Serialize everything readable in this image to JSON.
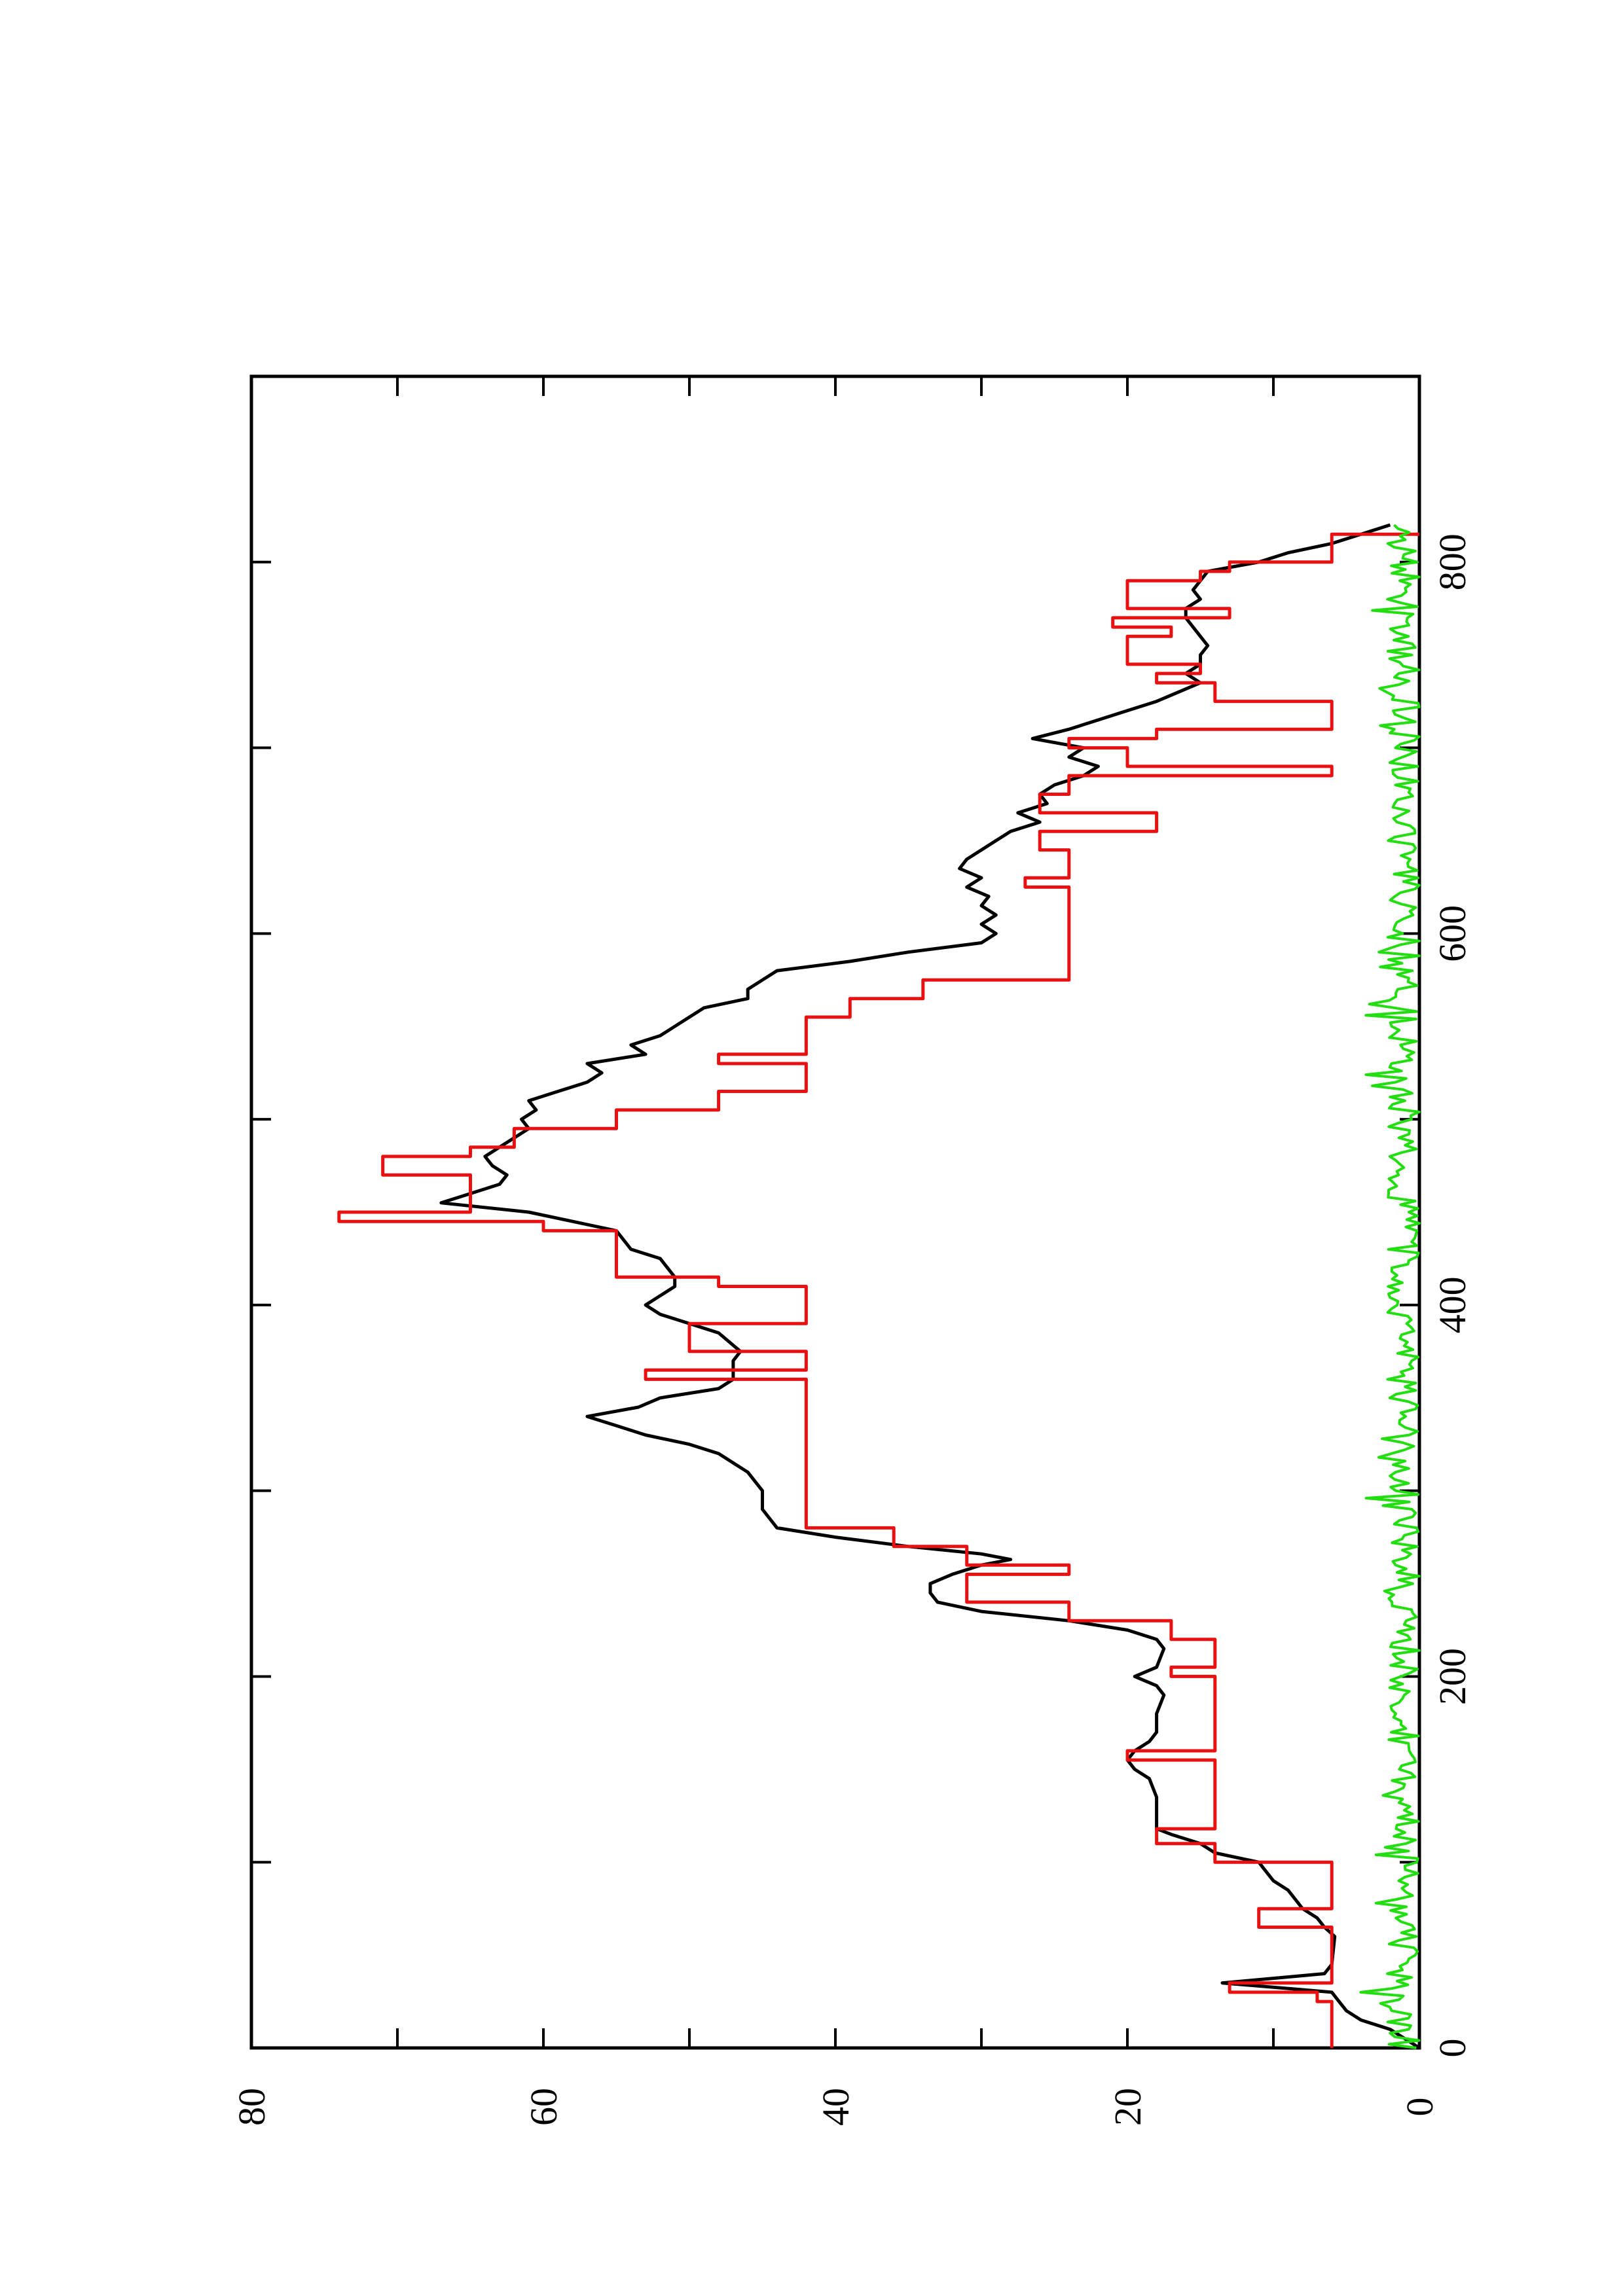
{
  "chart_data": {
    "type": "line",
    "orientation": "rotated-90-ccw",
    "title": "",
    "xlabel": "",
    "ylabel": "",
    "xlim": [
      0,
      900
    ],
    "ylim": [
      0,
      80
    ],
    "x_ticks": [
      0,
      200,
      400,
      600,
      800
    ],
    "y_ticks": [
      0,
      20,
      40,
      60,
      80
    ],
    "x_tick_labels": [
      "0",
      "200",
      "400",
      "600",
      "800"
    ],
    "y_tick_labels": [
      "0",
      "20",
      "40",
      "60",
      "80"
    ],
    "grid": false,
    "legend": "none",
    "series": [
      {
        "color": "#000000",
        "style": "smooth",
        "points": [
          [
            0,
            0
          ],
          [
            5,
            1
          ],
          [
            10,
            2
          ],
          [
            15,
            4
          ],
          [
            20,
            5
          ],
          [
            25,
            5.5
          ],
          [
            30,
            6
          ],
          [
            35,
            13.5
          ],
          [
            40,
            6.5
          ],
          [
            45,
            6
          ],
          [
            60,
            5.8
          ],
          [
            65,
            6.5
          ],
          [
            70,
            7
          ],
          [
            75,
            8
          ],
          [
            80,
            8.5
          ],
          [
            85,
            9
          ],
          [
            90,
            10
          ],
          [
            95,
            10.5
          ],
          [
            100,
            11
          ],
          [
            105,
            14
          ],
          [
            110,
            15
          ],
          [
            115,
            17
          ],
          [
            118,
            18
          ],
          [
            125,
            18
          ],
          [
            135,
            18
          ],
          [
            145,
            18.5
          ],
          [
            150,
            19.5
          ],
          [
            155,
            20
          ],
          [
            160,
            19.5
          ],
          [
            165,
            18.5
          ],
          [
            170,
            18
          ],
          [
            180,
            18
          ],
          [
            190,
            17.5
          ],
          [
            195,
            18
          ],
          [
            200,
            19.5
          ],
          [
            205,
            18
          ],
          [
            215,
            17.5
          ],
          [
            220,
            18
          ],
          [
            225,
            20
          ],
          [
            230,
            24
          ],
          [
            235,
            30
          ],
          [
            240,
            33
          ],
          [
            245,
            33.5
          ],
          [
            250,
            33.5
          ],
          [
            255,
            32
          ],
          [
            260,
            30
          ],
          [
            263,
            28
          ],
          [
            266,
            30
          ],
          [
            270,
            35
          ],
          [
            275,
            40
          ],
          [
            280,
            44
          ],
          [
            290,
            45
          ],
          [
            300,
            45
          ],
          [
            310,
            46
          ],
          [
            315,
            47
          ],
          [
            320,
            48
          ],
          [
            325,
            50
          ],
          [
            330,
            53
          ],
          [
            335,
            55
          ],
          [
            340,
            57
          ],
          [
            345,
            53.5
          ],
          [
            350,
            52
          ],
          [
            355,
            48
          ],
          [
            360,
            47
          ],
          [
            370,
            47
          ],
          [
            375,
            46.5
          ],
          [
            385,
            48
          ],
          [
            390,
            50
          ],
          [
            395,
            52
          ],
          [
            400,
            53
          ],
          [
            405,
            52
          ],
          [
            410,
            51
          ],
          [
            415,
            51
          ],
          [
            420,
            51.5
          ],
          [
            425,
            52
          ],
          [
            430,
            54
          ],
          [
            440,
            55
          ],
          [
            445,
            58
          ],
          [
            450,
            61
          ],
          [
            455,
            67
          ],
          [
            460,
            65
          ],
          [
            465,
            63
          ],
          [
            470,
            62.5
          ],
          [
            475,
            63.5
          ],
          [
            480,
            64
          ],
          [
            485,
            63
          ],
          [
            490,
            62
          ],
          [
            495,
            61
          ],
          [
            500,
            61.5
          ],
          [
            505,
            60.5
          ],
          [
            510,
            61
          ],
          [
            515,
            59
          ],
          [
            520,
            57
          ],
          [
            525,
            56
          ],
          [
            530,
            57
          ],
          [
            535,
            53
          ],
          [
            540,
            54
          ],
          [
            545,
            52
          ],
          [
            550,
            51
          ],
          [
            555,
            50
          ],
          [
            560,
            49
          ],
          [
            565,
            46
          ],
          [
            570,
            46
          ],
          [
            575,
            45
          ],
          [
            580,
            44
          ],
          [
            585,
            39
          ],
          [
            590,
            35
          ],
          [
            595,
            30
          ],
          [
            600,
            29
          ],
          [
            605,
            30
          ],
          [
            610,
            29
          ],
          [
            615,
            30
          ],
          [
            620,
            29.5
          ],
          [
            625,
            31
          ],
          [
            630,
            30
          ],
          [
            635,
            31.5
          ],
          [
            640,
            31
          ],
          [
            645,
            30
          ],
          [
            650,
            29
          ],
          [
            655,
            28
          ],
          [
            660,
            26
          ],
          [
            665,
            27.5
          ],
          [
            670,
            25.5
          ],
          [
            675,
            26
          ],
          [
            680,
            25
          ],
          [
            685,
            23
          ],
          [
            690,
            22
          ],
          [
            695,
            24
          ],
          [
            700,
            23
          ],
          [
            705,
            26.5
          ],
          [
            710,
            24
          ],
          [
            720,
            20
          ],
          [
            725,
            18
          ],
          [
            735,
            15
          ],
          [
            740,
            16
          ],
          [
            745,
            15
          ],
          [
            750,
            15
          ],
          [
            755,
            14.5
          ],
          [
            760,
            15
          ],
          [
            765,
            15.5
          ],
          [
            770,
            16
          ],
          [
            775,
            16
          ],
          [
            780,
            15
          ],
          [
            785,
            15.5
          ],
          [
            790,
            15
          ],
          [
            795,
            14.5
          ],
          [
            800,
            11
          ],
          [
            805,
            9
          ],
          [
            810,
            6
          ],
          [
            815,
            4
          ],
          [
            820,
            2
          ]
        ]
      },
      {
        "color": "#e81010",
        "style": "step",
        "points": [
          [
            0,
            6
          ],
          [
            25,
            6
          ],
          [
            25,
            7
          ],
          [
            30,
            7
          ],
          [
            30,
            13
          ],
          [
            35,
            13
          ],
          [
            35,
            6
          ],
          [
            65,
            6
          ],
          [
            65,
            11
          ],
          [
            75,
            11
          ],
          [
            75,
            6
          ],
          [
            100,
            6
          ],
          [
            100,
            14
          ],
          [
            110,
            14
          ],
          [
            110,
            18
          ],
          [
            118,
            18
          ],
          [
            118,
            14
          ],
          [
            155,
            14
          ],
          [
            155,
            20
          ],
          [
            160,
            20
          ],
          [
            160,
            14
          ],
          [
            200,
            14
          ],
          [
            200,
            17
          ],
          [
            205,
            17
          ],
          [
            205,
            14
          ],
          [
            220,
            14
          ],
          [
            220,
            17
          ],
          [
            230,
            17
          ],
          [
            230,
            24
          ],
          [
            240,
            24
          ],
          [
            240,
            31
          ],
          [
            255,
            31
          ],
          [
            255,
            24
          ],
          [
            260,
            24
          ],
          [
            260,
            31
          ],
          [
            270,
            31
          ],
          [
            270,
            36
          ],
          [
            280,
            36
          ],
          [
            280,
            42
          ],
          [
            360,
            42
          ],
          [
            360,
            53
          ],
          [
            365,
            53
          ],
          [
            365,
            42
          ],
          [
            375,
            42
          ],
          [
            375,
            50
          ],
          [
            390,
            50
          ],
          [
            390,
            42
          ],
          [
            410,
            42
          ],
          [
            410,
            48
          ],
          [
            415,
            48
          ],
          [
            415,
            55
          ],
          [
            440,
            55
          ],
          [
            440,
            60
          ],
          [
            445,
            60
          ],
          [
            445,
            74
          ],
          [
            450,
            74
          ],
          [
            450,
            65
          ],
          [
            470,
            65
          ],
          [
            470,
            71
          ],
          [
            480,
            71
          ],
          [
            480,
            65
          ],
          [
            485,
            65
          ],
          [
            485,
            62
          ],
          [
            495,
            62
          ],
          [
            495,
            55
          ],
          [
            505,
            55
          ],
          [
            505,
            48
          ],
          [
            515,
            48
          ],
          [
            515,
            42
          ],
          [
            530,
            42
          ],
          [
            530,
            48
          ],
          [
            535,
            48
          ],
          [
            535,
            42
          ],
          [
            555,
            42
          ],
          [
            555,
            39
          ],
          [
            565,
            39
          ],
          [
            565,
            34
          ],
          [
            575,
            34
          ],
          [
            575,
            24
          ],
          [
            625,
            24
          ],
          [
            625,
            27
          ],
          [
            630,
            27
          ],
          [
            630,
            24
          ],
          [
            645,
            24
          ],
          [
            645,
            26
          ],
          [
            655,
            26
          ],
          [
            655,
            18
          ],
          [
            665,
            18
          ],
          [
            665,
            26
          ],
          [
            675,
            26
          ],
          [
            675,
            24
          ],
          [
            685,
            24
          ],
          [
            685,
            6
          ],
          [
            690,
            6
          ],
          [
            690,
            20
          ],
          [
            700,
            20
          ],
          [
            700,
            24
          ],
          [
            705,
            24
          ],
          [
            705,
            18
          ],
          [
            710,
            18
          ],
          [
            710,
            6
          ],
          [
            725,
            6
          ],
          [
            725,
            14
          ],
          [
            735,
            14
          ],
          [
            735,
            18
          ],
          [
            740,
            18
          ],
          [
            740,
            15
          ],
          [
            745,
            15
          ],
          [
            745,
            20
          ],
          [
            760,
            20
          ],
          [
            760,
            17
          ],
          [
            765,
            17
          ],
          [
            765,
            21
          ],
          [
            770,
            21
          ],
          [
            770,
            13
          ],
          [
            775,
            13
          ],
          [
            775,
            20
          ],
          [
            790,
            20
          ],
          [
            790,
            15
          ],
          [
            795,
            15
          ],
          [
            795,
            13
          ],
          [
            800,
            13
          ],
          [
            800,
            6
          ],
          [
            815,
            6
          ],
          [
            815,
            0
          ]
        ]
      },
      {
        "color": "#22dd10",
        "style": "noise",
        "description_level": "fluctuates between 0 and about 4 across x 0–820",
        "points": []
      }
    ]
  }
}
